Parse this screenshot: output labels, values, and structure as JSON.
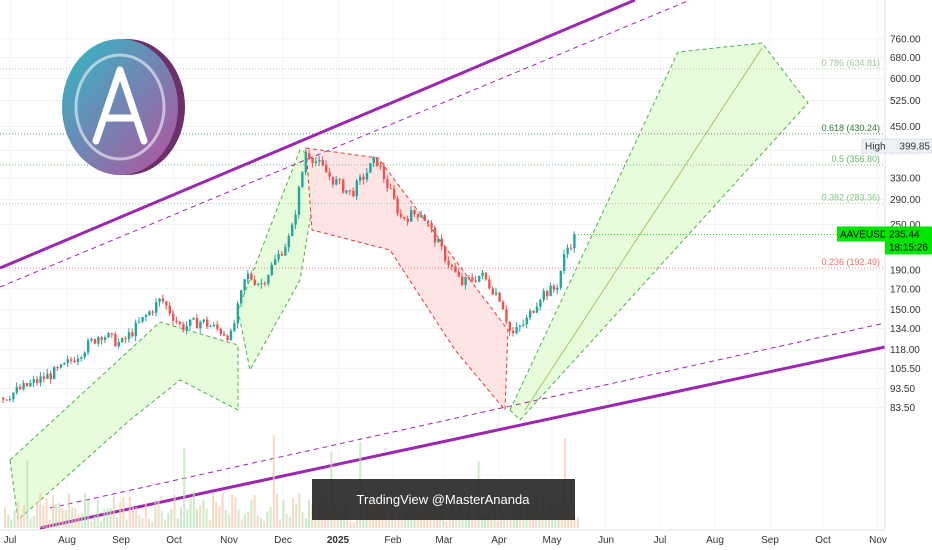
{
  "chart_data": {
    "type": "candlestick",
    "symbol": "AAVEUSDT",
    "last_price": "235.44",
    "countdown": "18:15:26",
    "high_label": "High",
    "high_value": "399.85",
    "watermark": "TradingView @MasterAnanda",
    "y_scale": "log",
    "ylim": [
      78,
      770
    ],
    "y_ticks": [
      "760.00",
      "680.00",
      "600.00",
      "525.00",
      "450.00",
      "390.00",
      "330.00",
      "290.00",
      "250.00",
      "190.00",
      "170.00",
      "150.00",
      "134.00",
      "118.00",
      "105.50",
      "93.50",
      "83.50"
    ],
    "x_ticks": [
      "Jul",
      "Aug",
      "Sep",
      "Oct",
      "Nov",
      "Dec",
      "2025",
      "Feb",
      "Mar",
      "Apr",
      "May",
      "Jun",
      "Jul",
      "Aug",
      "Sep",
      "Oct",
      "Nov"
    ],
    "fib_levels": [
      {
        "label": "0.786 (634.81)",
        "value": 634.81,
        "color": "#9ec79e"
      },
      {
        "label": "0.618 (430.24)",
        "value": 430.24,
        "color": "#2e7d32"
      },
      {
        "label": "0.5 (356.80)",
        "value": 356.8,
        "color": "#66bb6a"
      },
      {
        "label": "0.382 (283.36)",
        "value": 283.36,
        "color": "#81c784"
      },
      {
        "label": "0.236 (192.49)",
        "value": 192.49,
        "color": "#e57373"
      }
    ],
    "colors": {
      "up": "#26a69a",
      "down": "#ef5350",
      "channel": "#9c27b0",
      "price_tag": "#00e600",
      "bull_zone": "#e3fbd3",
      "bear_zone": "#fde0e0"
    },
    "logo": "aave-logo"
  }
}
